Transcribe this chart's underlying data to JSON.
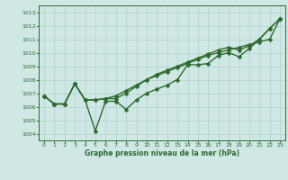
{
  "xlabel": "Graphe pression niveau de la mer (hPa)",
  "ylim": [
    1003.5,
    1013.5
  ],
  "xlim": [
    -0.5,
    23.5
  ],
  "yticks": [
    1004,
    1005,
    1006,
    1007,
    1008,
    1009,
    1010,
    1011,
    1012,
    1013
  ],
  "xticks": [
    0,
    1,
    2,
    3,
    4,
    5,
    6,
    7,
    8,
    9,
    10,
    11,
    12,
    13,
    14,
    15,
    16,
    17,
    18,
    19,
    20,
    21,
    22,
    23
  ],
  "bg_color": "#cfe8e5",
  "grid_color": "#b0d0cc",
  "line_color": "#2d6a2d",
  "line1": [
    1006.8,
    1006.2,
    1006.2,
    1007.7,
    1006.5,
    1004.2,
    1006.4,
    1006.4,
    1005.8,
    1006.5,
    1007.0,
    1007.3,
    1007.6,
    1008.0,
    1009.1,
    1009.1,
    1009.2,
    1009.8,
    1010.0,
    1009.7,
    1010.3,
    1011.0,
    1011.8,
    1012.5
  ],
  "line2": [
    1006.8,
    1006.2,
    1006.2,
    1007.7,
    1006.5,
    1006.5,
    1006.6,
    1006.6,
    1007.0,
    1007.5,
    1008.0,
    1008.3,
    1008.6,
    1008.9,
    1009.2,
    1009.5,
    1009.8,
    1010.0,
    1010.2,
    1010.4,
    1010.6,
    1010.8,
    1011.0,
    1012.5
  ],
  "line3": [
    1006.8,
    1006.2,
    1006.2,
    1007.7,
    1006.5,
    1006.5,
    1006.6,
    1006.8,
    1007.2,
    1007.6,
    1008.0,
    1008.4,
    1008.7,
    1009.0,
    1009.3,
    1009.6,
    1009.9,
    1010.2,
    1010.4,
    1010.2,
    1010.5,
    1011.0,
    1011.8,
    1012.5
  ],
  "marker_size": 2.5,
  "line_width": 1.0
}
